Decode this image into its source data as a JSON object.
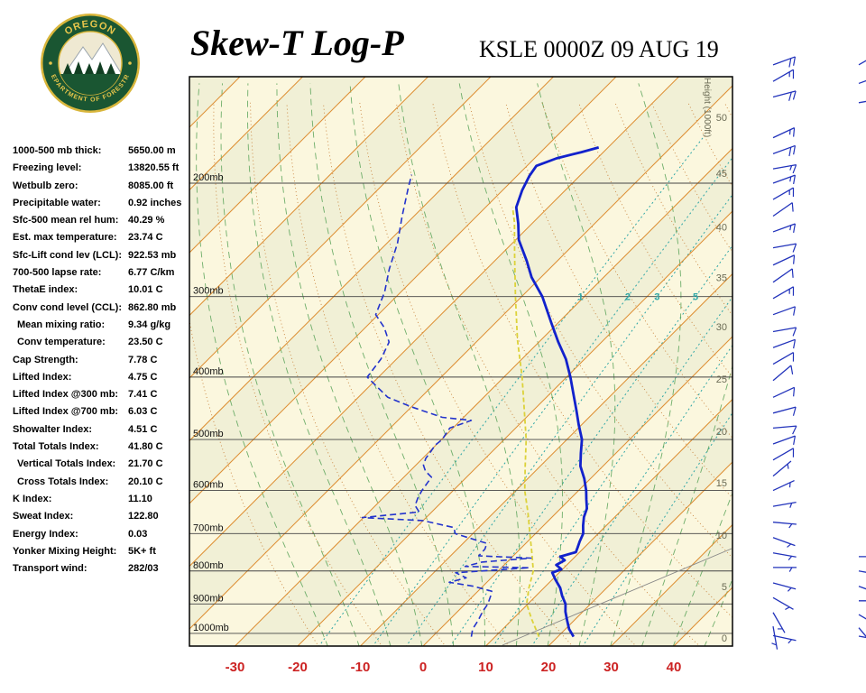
{
  "header": {
    "title": "Skew-T Log-P",
    "station": "KSLE 0000Z 09 AUG 19",
    "logo": {
      "top_text": "OREGON",
      "bottom_text": "DEPARTMENT OF FORESTRY"
    }
  },
  "stats": [
    {
      "label": "1000-500 mb thick:",
      "value": "5650.00 m"
    },
    {
      "label": "Freezing level:",
      "value": "13820.55 ft"
    },
    {
      "label": "Wetbulb zero:",
      "value": "8085.00 ft"
    },
    {
      "label": "Precipitable water:",
      "value": "0.92 inches"
    },
    {
      "label": "Sfc-500 mean rel hum:",
      "value": "40.29 %"
    },
    {
      "label": "Est. max temperature:",
      "value": "23.74 C"
    },
    {
      "label": "Sfc-Lift cond lev (LCL):",
      "value": "922.53 mb"
    },
    {
      "label": "700-500 lapse rate:",
      "value": "6.77 C/km"
    },
    {
      "label": "ThetaE index:",
      "value": "10.01 C"
    },
    {
      "label": "Conv cond level (CCL):",
      "value": "862.80 mb"
    },
    {
      "label": "Mean mixing ratio:",
      "value": "9.34 g/kg",
      "indent": true
    },
    {
      "label": "Conv temperature:",
      "value": "23.50 C",
      "indent": true
    },
    {
      "label": "Cap Strength:",
      "value": "7.78 C"
    },
    {
      "label": "Lifted Index:",
      "value": "4.75 C"
    },
    {
      "label": "Lifted Index @300 mb:",
      "value": "7.41 C"
    },
    {
      "label": "Lifted Index @700 mb:",
      "value": "6.03 C"
    },
    {
      "label": "Showalter Index:",
      "value": "4.51 C"
    },
    {
      "label": "Total Totals Index:",
      "value": "41.80 C"
    },
    {
      "label": "Vertical Totals Index:",
      "value": "21.70 C",
      "indent": true
    },
    {
      "label": "Cross Totals Index:",
      "value": "20.10 C",
      "indent": true
    },
    {
      "label": "K Index:",
      "value": "11.10"
    },
    {
      "label": "Sweat Index:",
      "value": "122.80"
    },
    {
      "label": "Energy Index:",
      "value": "0.03"
    },
    {
      "label": "Yonker Mixing Height:",
      "value": "5K+ ft"
    },
    {
      "label": "Transport wind:",
      "value": "282/03"
    }
  ],
  "chart_data": {
    "type": "skew-t-log-p",
    "pressure_unit": "mb",
    "pressure_levels_mb": [
      200,
      300,
      400,
      500,
      600,
      700,
      800,
      900,
      1000
    ],
    "temp_axis_c": [
      -30,
      -20,
      -10,
      0,
      10,
      20,
      30,
      40
    ],
    "height_axis": {
      "label": "Height (1000ft)",
      "ticks": [
        {
          "value": 50,
          "p": 158
        },
        {
          "value": 45,
          "p": 193
        },
        {
          "value": 40,
          "p": 234
        },
        {
          "value": 35,
          "p": 280
        },
        {
          "value": 30,
          "p": 334
        },
        {
          "value": 25,
          "p": 403
        },
        {
          "value": 20,
          "p": 486
        },
        {
          "value": 15,
          "p": 584
        },
        {
          "value": 10,
          "p": 704
        },
        {
          "value": 5,
          "p": 846
        },
        {
          "value": 0,
          "p": 1016
        }
      ]
    },
    "mixing_ratio_lines_gkg": [
      1,
      2,
      3,
      5,
      8,
      12,
      20
    ],
    "mixing_ratio_labels": [
      1,
      2,
      3,
      5
    ],
    "mixing_label_pressure_mb": 300,
    "temperature_profile": [
      [
        1012,
        22.5
      ],
      [
        985,
        20.6
      ],
      [
        955,
        18.9
      ],
      [
        925,
        17.2
      ],
      [
        900,
        16.0
      ],
      [
        875,
        14.2
      ],
      [
        850,
        12.6
      ],
      [
        825,
        10.5
      ],
      [
        805,
        8.9
      ],
      [
        795,
        9.8
      ],
      [
        783,
        8.3
      ],
      [
        770,
        8.9
      ],
      [
        760,
        7.6
      ],
      [
        748,
        9.4
      ],
      [
        735,
        8.9
      ],
      [
        720,
        8.3
      ],
      [
        700,
        7.6
      ],
      [
        680,
        6.3
      ],
      [
        660,
        5.1
      ],
      [
        640,
        4.2
      ],
      [
        620,
        2.7
      ],
      [
        600,
        1.2
      ],
      [
        575,
        -1.0
      ],
      [
        550,
        -3.6
      ],
      [
        525,
        -5.6
      ],
      [
        500,
        -7.6
      ],
      [
        475,
        -10.4
      ],
      [
        450,
        -13.2
      ],
      [
        425,
        -16.2
      ],
      [
        400,
        -19.4
      ],
      [
        375,
        -23.0
      ],
      [
        353,
        -26.9
      ],
      [
        330,
        -31.0
      ],
      [
        300,
        -36.7
      ],
      [
        280,
        -41.5
      ],
      [
        264,
        -44.9
      ],
      [
        245,
        -49.5
      ],
      [
        231,
        -52.2
      ],
      [
        218,
        -55.1
      ],
      [
        205,
        -56.9
      ],
      [
        195,
        -58.0
      ],
      [
        188,
        -58.5
      ],
      [
        183,
        -56.5
      ],
      [
        179,
        -53.5
      ],
      [
        176,
        -51.5
      ]
    ],
    "dewpoint_profile": [
      [
        1012,
        6.2
      ],
      [
        985,
        5.2
      ],
      [
        955,
        4.7
      ],
      [
        925,
        4.0
      ],
      [
        900,
        3.6
      ],
      [
        875,
        2.8
      ],
      [
        860,
        2.2
      ],
      [
        845,
        -1.5
      ],
      [
        833,
        -6.0
      ],
      [
        820,
        -4.0
      ],
      [
        805,
        -6.5
      ],
      [
        791,
        4.5
      ],
      [
        787,
        -6.0
      ],
      [
        775,
        -4.0
      ],
      [
        764,
        3.2
      ],
      [
        758,
        -5.5
      ],
      [
        740,
        -5.6
      ],
      [
        725,
        -6.2
      ],
      [
        700,
        -12.8
      ],
      [
        685,
        -14.0
      ],
      [
        668,
        -20.1
      ],
      [
        661,
        -30.2
      ],
      [
        648,
        -22.0
      ],
      [
        633,
        -23.7
      ],
      [
        615,
        -24.5
      ],
      [
        600,
        -25.0
      ],
      [
        585,
        -25.3
      ],
      [
        572,
        -25.6
      ],
      [
        560,
        -27.5
      ],
      [
        548,
        -28.8
      ],
      [
        535,
        -29.5
      ],
      [
        522,
        -29.8
      ],
      [
        510,
        -30.1
      ],
      [
        500,
        -29.9
      ],
      [
        480,
        -30.5
      ],
      [
        467,
        -28.3
      ],
      [
        462,
        -33.4
      ],
      [
        445,
        -40.0
      ],
      [
        430,
        -45.3
      ],
      [
        415,
        -48.5
      ],
      [
        400,
        -51.8
      ],
      [
        375,
        -52.5
      ],
      [
        353,
        -53.9
      ],
      [
        335,
        -57.0
      ],
      [
        320,
        -60.4
      ],
      [
        295,
        -62.6
      ],
      [
        272,
        -65.5
      ],
      [
        248,
        -68.3
      ],
      [
        225,
        -71.9
      ],
      [
        203,
        -75.5
      ],
      [
        194,
        -77.0
      ]
    ],
    "parcel_line": [
      [
        1012,
        17.0
      ],
      [
        950,
        13.0
      ],
      [
        900,
        9.8
      ],
      [
        850,
        7.6
      ],
      [
        800,
        5.6
      ],
      [
        750,
        2.5
      ],
      [
        700,
        -0.9
      ],
      [
        650,
        -4.5
      ],
      [
        600,
        -8.6
      ],
      [
        550,
        -12.4
      ],
      [
        500,
        -16.5
      ],
      [
        450,
        -21.5
      ],
      [
        400,
        -27.1
      ],
      [
        350,
        -33.8
      ],
      [
        300,
        -41.0
      ],
      [
        260,
        -47.5
      ],
      [
        230,
        -53.0
      ],
      [
        218,
        -55.7
      ]
    ],
    "wind_barbs": [
      {
        "p": 131,
        "dir": 250,
        "spd": 20
      },
      {
        "p": 139,
        "dir": 240,
        "spd": 15
      },
      {
        "p": 147,
        "dir": 255,
        "spd": 20
      },
      {
        "p": 170,
        "dir": 245,
        "spd": 15
      },
      {
        "p": 180,
        "dir": 250,
        "spd": 20
      },
      {
        "p": 190,
        "dir": 260,
        "spd": 15
      },
      {
        "p": 200,
        "dir": 250,
        "spd": 15
      },
      {
        "p": 212,
        "dir": 240,
        "spd": 15
      },
      {
        "p": 225,
        "dir": 235,
        "spd": 10
      },
      {
        "p": 238,
        "dir": 250,
        "spd": 15
      },
      {
        "p": 252,
        "dir": 260,
        "spd": 10
      },
      {
        "p": 268,
        "dir": 245,
        "spd": 10
      },
      {
        "p": 285,
        "dir": 235,
        "spd": 10
      },
      {
        "p": 302,
        "dir": 240,
        "spd": 15
      },
      {
        "p": 320,
        "dir": 250,
        "spd": 10
      },
      {
        "p": 340,
        "dir": 260,
        "spd": 10
      },
      {
        "p": 360,
        "dir": 250,
        "spd": 10
      },
      {
        "p": 382,
        "dir": 240,
        "spd": 10
      },
      {
        "p": 405,
        "dir": 230,
        "spd": 10
      },
      {
        "p": 430,
        "dir": 245,
        "spd": 10
      },
      {
        "p": 455,
        "dir": 255,
        "spd": 10
      },
      {
        "p": 480,
        "dir": 265,
        "spd": 10
      },
      {
        "p": 508,
        "dir": 250,
        "spd": 10
      },
      {
        "p": 538,
        "dir": 240,
        "spd": 10
      },
      {
        "p": 570,
        "dir": 230,
        "spd": 5
      },
      {
        "p": 600,
        "dir": 245,
        "spd": 5
      },
      {
        "p": 635,
        "dir": 260,
        "spd": 5
      },
      {
        "p": 672,
        "dir": 275,
        "spd": 5
      },
      {
        "p": 710,
        "dir": 290,
        "spd": 5
      },
      {
        "p": 750,
        "dir": 280,
        "spd": 5
      },
      {
        "p": 790,
        "dir": 270,
        "spd": 5
      },
      {
        "p": 835,
        "dir": 285,
        "spd": 5
      },
      {
        "p": 880,
        "dir": 300,
        "spd": 5
      },
      {
        "p": 928,
        "dir": 330,
        "spd": 5
      },
      {
        "p": 975,
        "dir": 350,
        "spd": 5
      },
      {
        "p": 1008,
        "dir": 282,
        "spd": 5
      }
    ],
    "edge_wind_barbs": [
      {
        "p": 131,
        "dir": 240,
        "spd": 15
      },
      {
        "p": 140,
        "dir": 250,
        "spd": 10
      },
      {
        "p": 150,
        "dir": 260,
        "spd": 15
      },
      {
        "p": 760,
        "dir": 270,
        "spd": 5
      },
      {
        "p": 800,
        "dir": 280,
        "spd": 5
      },
      {
        "p": 845,
        "dir": 290,
        "spd": 5
      },
      {
        "p": 890,
        "dir": 270,
        "spd": 5
      },
      {
        "p": 935,
        "dir": 300,
        "spd": 5
      },
      {
        "p": 980,
        "dir": 320,
        "spd": 5
      },
      {
        "p": 1010,
        "dir": 280,
        "spd": 5
      }
    ],
    "colors": {
      "band_a": "#FBF7DE",
      "band_b": "#F1F0D6",
      "isotherm": "#DD8E33",
      "dry_adiabat": "#C8823C",
      "moist_adiabat": "#56A156",
      "mixing": "#2FA6A6",
      "pressure_line": "#444444",
      "height_text": "#6B6B55",
      "temp_axis_text": "#CC2222",
      "temperature": "#1222CC",
      "dewpoint": "#2333CC",
      "parcel": "#DCD23A",
      "barbs": "#2233BB"
    }
  }
}
